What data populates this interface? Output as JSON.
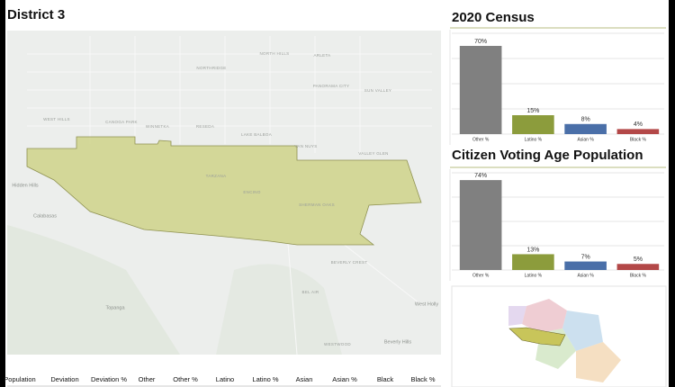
{
  "header": {
    "title": "District 3"
  },
  "map": {
    "labels": [
      "NORTHRIDGE",
      "NORTH HILLS",
      "ARLETA",
      "PANORAMA CITY",
      "SUN VALLEY",
      "WEST HILLS",
      "CANOGA PARK",
      "WINNETKA",
      "RESEDA",
      "LAKE BALBOA",
      "VAN NUYS",
      "VALLEY GLEN",
      "Hidden Hills",
      "Calabasas",
      "TARZANA",
      "ENCINO",
      "SHERMAN OAKS",
      "BEVERLY CREST",
      "BEL AIR",
      "Topanga",
      "West Holly",
      "Beverly Hills",
      "WESTWOOD"
    ]
  },
  "table": {
    "columns": [
      "Population",
      "Deviation",
      "Deviation %",
      "Other",
      "Other %",
      "Latino",
      "Latino %",
      "Asian",
      "Asian %",
      "Black",
      "Black %"
    ]
  },
  "chart_data": [
    {
      "type": "bar",
      "title": "2020 Census",
      "categories": [
        "Other %",
        "Latino %",
        "Asian %",
        "Black %"
      ],
      "values": [
        70,
        15,
        8,
        4
      ],
      "value_labels": [
        "70%",
        "15%",
        "8%",
        "4%"
      ],
      "colors": [
        "#808080",
        "#8c9c3c",
        "#4a6fa8",
        "#b34848"
      ],
      "ylim": [
        0,
        80
      ],
      "yticks": [
        0,
        20,
        40,
        60,
        80
      ],
      "grid": true
    },
    {
      "type": "bar",
      "title": "Citizen Voting Age Population",
      "categories": [
        "Other %",
        "Latino %",
        "Asian %",
        "Black %"
      ],
      "values": [
        74,
        13,
        7,
        5
      ],
      "value_labels": [
        "74%",
        "13%",
        "7%",
        "5%"
      ],
      "colors": [
        "#808080",
        "#8c9c3c",
        "#4a6fa8",
        "#b34848"
      ],
      "ylim": [
        0,
        80
      ],
      "yticks": [
        0,
        20,
        40,
        60,
        80
      ],
      "grid": true
    }
  ]
}
